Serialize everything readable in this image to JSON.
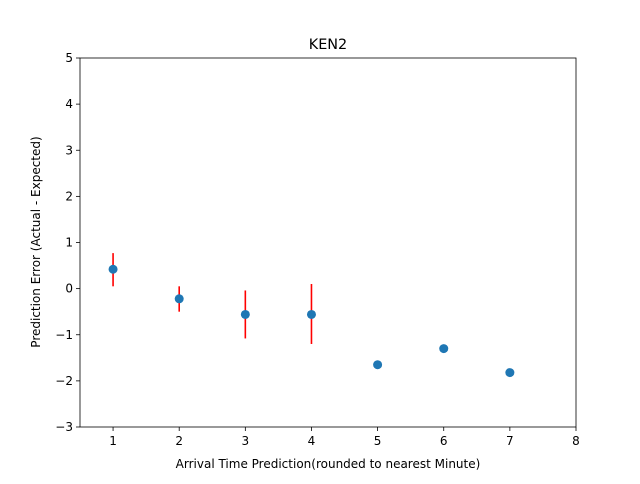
{
  "chart_data": {
    "type": "scatter",
    "title": "KEN2",
    "xlabel": "Arrival Time Prediction(rounded to nearest Minute)",
    "ylabel": "Prediction Error (Actual - Expected)",
    "xlim": [
      0.5,
      8
    ],
    "ylim": [
      -3,
      5
    ],
    "x_ticks": [
      1,
      2,
      3,
      4,
      5,
      6,
      7,
      8
    ],
    "y_ticks": [
      -3,
      -2,
      -1,
      0,
      1,
      2,
      3,
      4,
      5
    ],
    "grid": false,
    "series": [
      {
        "x": [
          1,
          2,
          3,
          4,
          5,
          6,
          7
        ],
        "y": [
          0.42,
          -0.22,
          -0.56,
          -0.56,
          -1.65,
          -1.3,
          -1.82
        ],
        "marker_color": "#1f77b4"
      }
    ],
    "error_bars": [
      {
        "x": 1,
        "low": 0.05,
        "high": 0.77
      },
      {
        "x": 2,
        "low": -0.5,
        "high": 0.05
      },
      {
        "x": 3,
        "low": -1.08,
        "high": -0.04
      },
      {
        "x": 4,
        "low": -1.2,
        "high": 0.1
      }
    ],
    "error_bar_color": "#ff0000"
  }
}
